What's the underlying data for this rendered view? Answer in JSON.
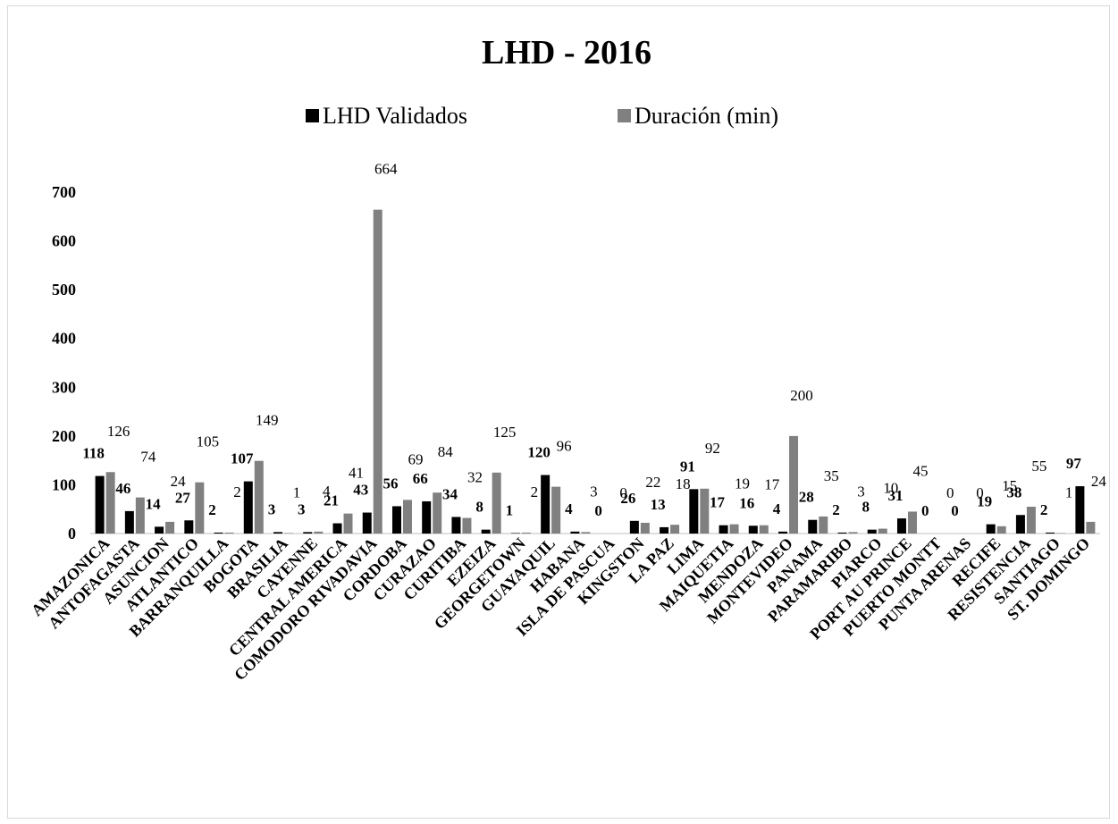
{
  "chart_data": {
    "type": "bar",
    "title": "LHD - 2016",
    "categories": [
      "AMAZONICA",
      "ANTOFAGASTA",
      "ASUNCION",
      "ATLANTICO",
      "BARRANQUILLA",
      "BOGOTA",
      "BRASILIA",
      "CAYENNE",
      "CENTRAL AMERICA",
      "COMODORO RIVADAVIA",
      "CORDOBA",
      "CURAZAO",
      "CURITIBA",
      "EZEIZA",
      "GEORGETOWN",
      "GUAYAQUIL",
      "HABANA",
      "ISLA DE PASCUA",
      "KINGSTON",
      "LA PAZ",
      "LIMA",
      "MAIQUETIA",
      "MENDOZA",
      "MONTEVIDEO",
      "PANAMA",
      "PARAMARIBO",
      "PIARCO",
      "PORT AU PRINCE",
      "PUERTO MONTT",
      "PUNTA ARENAS",
      "RECIFE",
      "RESISTENCIA",
      "SANTIAGO",
      "ST. DOMINGO"
    ],
    "series": [
      {
        "name": "LHD Validados",
        "color": "#000000",
        "values": [
          118,
          46,
          14,
          27,
          2,
          107,
          3,
          3,
          21,
          43,
          56,
          66,
          34,
          8,
          1,
          120,
          4,
          0,
          26,
          13,
          91,
          17,
          16,
          4,
          28,
          2,
          8,
          31,
          0,
          0,
          19,
          38,
          2,
          97
        ]
      },
      {
        "name": "Duración (min)",
        "color": "#808080",
        "values": [
          126,
          74,
          24,
          105,
          2,
          149,
          1,
          4,
          41,
          664,
          69,
          84,
          32,
          125,
          2,
          96,
          3,
          0,
          22,
          18,
          92,
          19,
          17,
          200,
          35,
          3,
          10,
          45,
          0,
          0,
          15,
          55,
          1,
          24
        ]
      }
    ],
    "ylim": [
      0,
      700
    ],
    "yticks": [
      0,
      100,
      200,
      300,
      400,
      500,
      600,
      700
    ],
    "xlabel": "",
    "ylabel": "",
    "grid": false,
    "legend_position": "top"
  }
}
